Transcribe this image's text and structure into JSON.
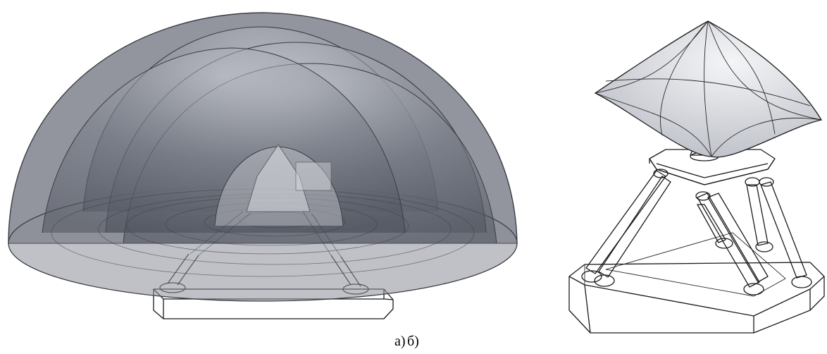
{
  "figure": {
    "caption_a": "а)",
    "caption_b": "б)"
  },
  "palette": {
    "dome_fill": "#6e727d",
    "dome_edge": "#3a3d44",
    "cap_fill": "#d9dbe0",
    "line": "#1b1b1b"
  }
}
